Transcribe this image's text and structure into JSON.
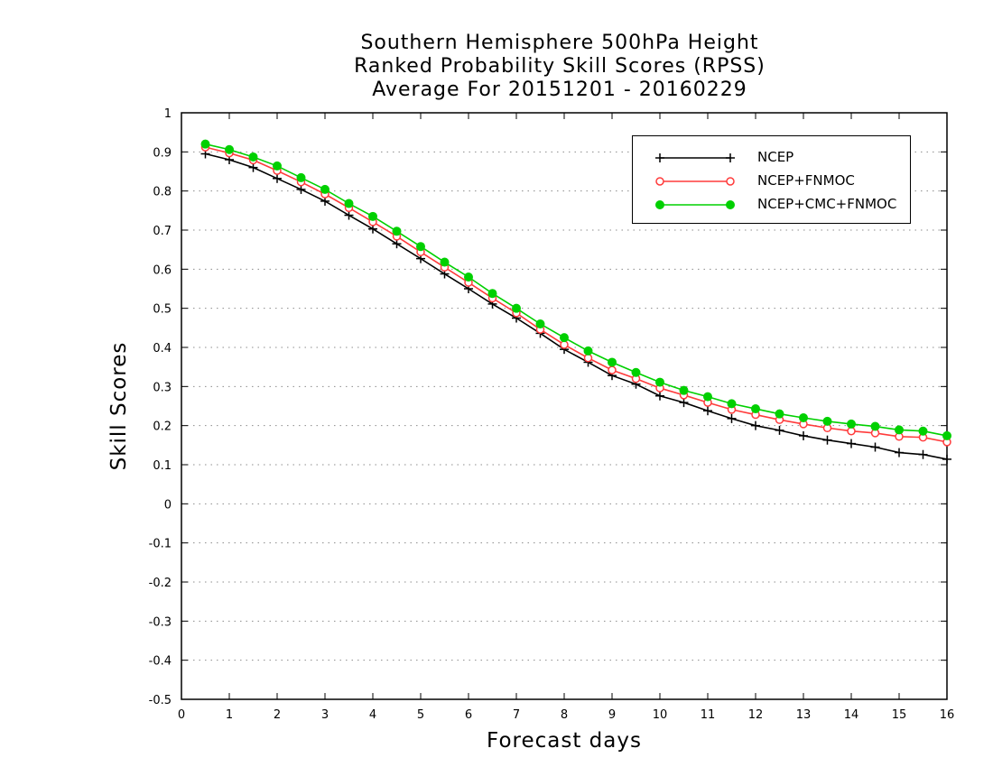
{
  "chart_data": {
    "type": "line",
    "title_lines": [
      "Southern Hemisphere 500hPa Height",
      "Ranked Probability Skill Scores (RPSS)",
      "Average For 20151201 - 20160229"
    ],
    "xlabel": "Forecast days",
    "ylabel": "Skill Scores",
    "xlim": [
      0,
      16
    ],
    "ylim": [
      -0.5,
      1
    ],
    "x_ticks": [
      "0",
      "1",
      "2",
      "3",
      "4",
      "5",
      "6",
      "7",
      "8",
      "9",
      "10",
      "11",
      "12",
      "13",
      "14",
      "15",
      "16"
    ],
    "y_ticks": [
      "-0.5",
      "-0.4",
      "-0.3",
      "-0.2",
      "-0.1",
      "0",
      "0.1",
      "0.2",
      "0.3",
      "0.4",
      "0.5",
      "0.6",
      "0.7",
      "0.8",
      "0.9",
      "1"
    ],
    "grid": "horizontal dotted",
    "legend_position": "top-right",
    "x": [
      0.5,
      1,
      1.5,
      2,
      2.5,
      3,
      3.5,
      4,
      4.5,
      5,
      5.5,
      6,
      6.5,
      7,
      7.5,
      8,
      8.5,
      9,
      9.5,
      10,
      10.5,
      11,
      11.5,
      12,
      12.5,
      13,
      13.5,
      14,
      14.5,
      15,
      15.5,
      16
    ],
    "series": [
      {
        "name": "NCEP",
        "color": "#000000",
        "marker": "plus",
        "values": [
          0.895,
          0.88,
          0.86,
          0.832,
          0.804,
          0.774,
          0.738,
          0.703,
          0.665,
          0.627,
          0.588,
          0.55,
          0.511,
          0.475,
          0.436,
          0.395,
          0.362,
          0.328,
          0.306,
          0.276,
          0.259,
          0.238,
          0.218,
          0.2,
          0.188,
          0.174,
          0.163,
          0.154,
          0.145,
          0.131,
          0.126,
          0.114
        ]
      },
      {
        "name": "NCEP+FNMOC",
        "color": "#ff3b3b",
        "marker": "open-circle",
        "values": [
          0.912,
          0.897,
          0.879,
          0.852,
          0.823,
          0.792,
          0.757,
          0.721,
          0.684,
          0.644,
          0.605,
          0.566,
          0.526,
          0.488,
          0.446,
          0.407,
          0.373,
          0.342,
          0.32,
          0.296,
          0.278,
          0.259,
          0.241,
          0.228,
          0.215,
          0.204,
          0.194,
          0.186,
          0.181,
          0.172,
          0.17,
          0.158
        ]
      },
      {
        "name": "NCEP+CMC+FNMOC",
        "color": "#00d000",
        "marker": "filled-circle",
        "values": [
          0.92,
          0.906,
          0.887,
          0.864,
          0.834,
          0.804,
          0.768,
          0.735,
          0.697,
          0.658,
          0.618,
          0.58,
          0.538,
          0.5,
          0.46,
          0.425,
          0.391,
          0.362,
          0.336,
          0.311,
          0.29,
          0.274,
          0.256,
          0.243,
          0.23,
          0.22,
          0.211,
          0.204,
          0.198,
          0.189,
          0.186,
          0.174
        ]
      }
    ]
  }
}
